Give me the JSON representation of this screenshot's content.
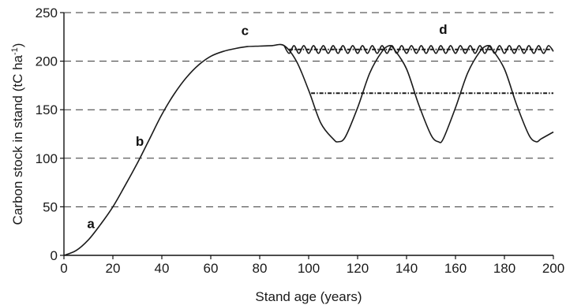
{
  "chart_data": {
    "type": "line",
    "title": "",
    "xlabel": "Stand age (years)",
    "ylabel": "Carbon stock in stand (tC ha",
    "ylabel_sup": "-1",
    "ylabel_close": ")",
    "xlim": [
      0,
      200
    ],
    "ylim": [
      0,
      250
    ],
    "x_ticks": [
      0,
      20,
      40,
      60,
      80,
      100,
      120,
      140,
      160,
      180,
      200
    ],
    "y_ticks": [
      0,
      50,
      100,
      150,
      200,
      250
    ],
    "grid": "horizontal dashed",
    "annotations": [
      {
        "text": "a",
        "x": 11,
        "y": 28
      },
      {
        "text": "b",
        "x": 31,
        "y": 113
      },
      {
        "text": "c",
        "x": 74,
        "y": 227
      },
      {
        "text": "d",
        "x": 155,
        "y": 228
      }
    ],
    "series": [
      {
        "style": "solid",
        "x": [
          0,
          5,
          10,
          15,
          20,
          25,
          30,
          35,
          40,
          45,
          50,
          55,
          60,
          65,
          70,
          75,
          80,
          85,
          90,
          95,
          100,
          105,
          110,
          112,
          115,
          120,
          125,
          130,
          133,
          135,
          140,
          145,
          150,
          153,
          155,
          160,
          165,
          170,
          173,
          175,
          180,
          185,
          190,
          193,
          195,
          200
        ],
        "y": [
          0,
          5,
          16,
          32,
          50,
          72,
          95,
          120,
          145,
          166,
          183,
          196,
          205,
          210,
          213,
          215,
          215.5,
          216,
          216,
          200,
          170,
          136,
          120,
          117,
          122,
          152,
          188,
          210,
          216,
          212,
          192,
          155,
          124,
          117,
          120,
          152,
          188,
          210,
          216,
          212,
          192,
          155,
          124,
          117,
          120,
          127
        ]
      },
      {
        "style": "wavy-solid",
        "x": [
          90,
          92,
          94,
          96,
          98,
          100,
          102,
          104,
          106,
          108,
          110,
          112,
          114,
          116,
          118,
          120,
          122,
          124,
          126,
          128,
          130,
          132,
          134,
          136,
          138,
          140,
          142,
          144,
          146,
          148,
          150,
          152,
          154,
          156,
          158,
          160,
          162,
          164,
          166,
          168,
          170,
          172,
          174,
          176,
          178,
          180,
          182,
          184,
          186,
          188,
          190,
          192,
          194,
          196,
          198,
          200
        ],
        "y": [
          216,
          208,
          216,
          208,
          216,
          208,
          216,
          208,
          216,
          208,
          216,
          208,
          216,
          208,
          216,
          208,
          216,
          208,
          216,
          208,
          216,
          208,
          216,
          208,
          216,
          208,
          216,
          208,
          216,
          208,
          216,
          208,
          216,
          208,
          216,
          208,
          216,
          208,
          216,
          208,
          216,
          208,
          216,
          208,
          216,
          208,
          216,
          208,
          216,
          208,
          216,
          208,
          216,
          208,
          216,
          210
        ]
      },
      {
        "style": "dash-dot",
        "x": [
          92,
          200
        ],
        "y": [
          212,
          212
        ]
      },
      {
        "style": "dash-dot",
        "x": [
          101,
          200
        ],
        "y": [
          167,
          167
        ]
      }
    ]
  }
}
